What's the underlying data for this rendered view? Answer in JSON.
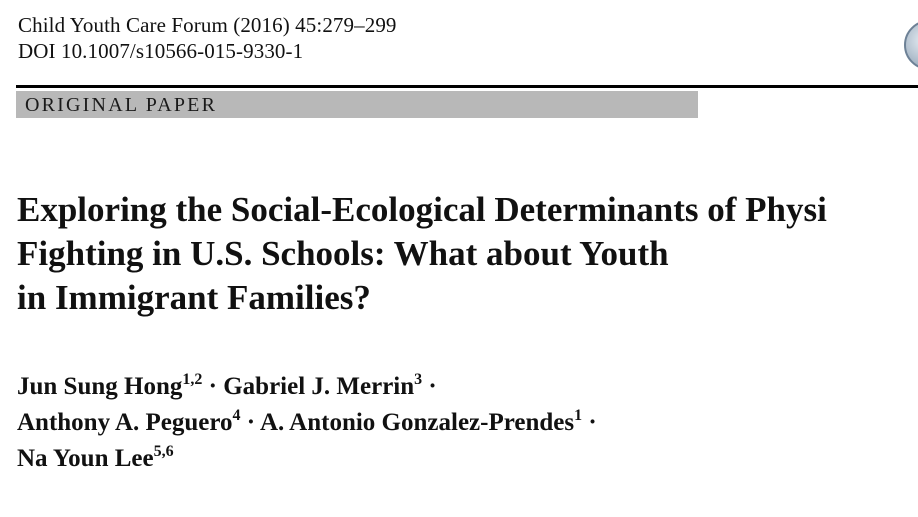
{
  "journal": {
    "citation": "Child Youth Care Forum (2016) 45:279–299",
    "doi": "DOI 10.1007/s10566-015-9330-1"
  },
  "section": {
    "label": "ORIGINAL PAPER"
  },
  "article": {
    "title_lines": [
      "Exploring the Social-Ecological Determinants of Physi",
      "Fighting in U.S. Schools: What about Youth",
      "in Immigrant Families?"
    ],
    "separator": " · ",
    "authors": [
      {
        "name": "Jun Sung Hong",
        "affiliations": "1,2"
      },
      {
        "name": "Gabriel J. Merrin",
        "affiliations": "3"
      },
      {
        "name": "Anthony A. Peguero",
        "affiliations": "4"
      },
      {
        "name": "A. Antonio Gonzalez-Prendes",
        "affiliations": "1"
      },
      {
        "name": "Na Youn Lee",
        "affiliations": "5,6"
      }
    ]
  },
  "icons": {
    "crossmark": "crossmark-icon"
  }
}
